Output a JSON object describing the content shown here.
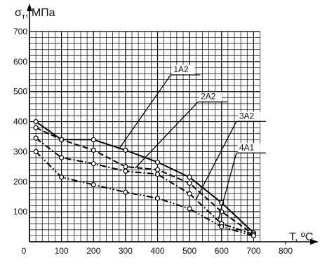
{
  "chart_data": {
    "type": "line",
    "ylabel_symbol": "σ",
    "ylabel_subscript": "т",
    "ylabel_unit": ", МПа",
    "xlabel": "T, ºC",
    "xlim": [
      0,
      800
    ],
    "ylim": [
      0,
      700
    ],
    "x_origin_label": "0",
    "x_ticks": [
      100,
      200,
      300,
      400,
      500,
      600,
      700,
      800
    ],
    "y_ticks": [
      100,
      200,
      300,
      400,
      500,
      600,
      700
    ],
    "grid": true,
    "series": [
      {
        "name": "1А2",
        "style": "solid",
        "x": [
          20,
          100,
          200,
          300,
          400,
          500,
          600,
          700
        ],
        "y": [
          400,
          340,
          340,
          305,
          265,
          215,
          130,
          30
        ]
      },
      {
        "name": "2А2",
        "style": "dash",
        "x": [
          20,
          100,
          200,
          300,
          400,
          500,
          600,
          700
        ],
        "y": [
          380,
          340,
          305,
          250,
          240,
          195,
          100,
          25
        ]
      },
      {
        "name": "3А2",
        "style": "dashdot",
        "x": [
          20,
          100,
          200,
          300,
          400,
          500,
          600,
          700
        ],
        "y": [
          345,
          280,
          260,
          235,
          225,
          160,
          60,
          25
        ]
      },
      {
        "name": "4А1",
        "style": "dashdotdot",
        "x": [
          20,
          100,
          200,
          300,
          400,
          500,
          600,
          700
        ],
        "y": [
          300,
          215,
          190,
          165,
          145,
          110,
          50,
          20
        ]
      }
    ]
  }
}
